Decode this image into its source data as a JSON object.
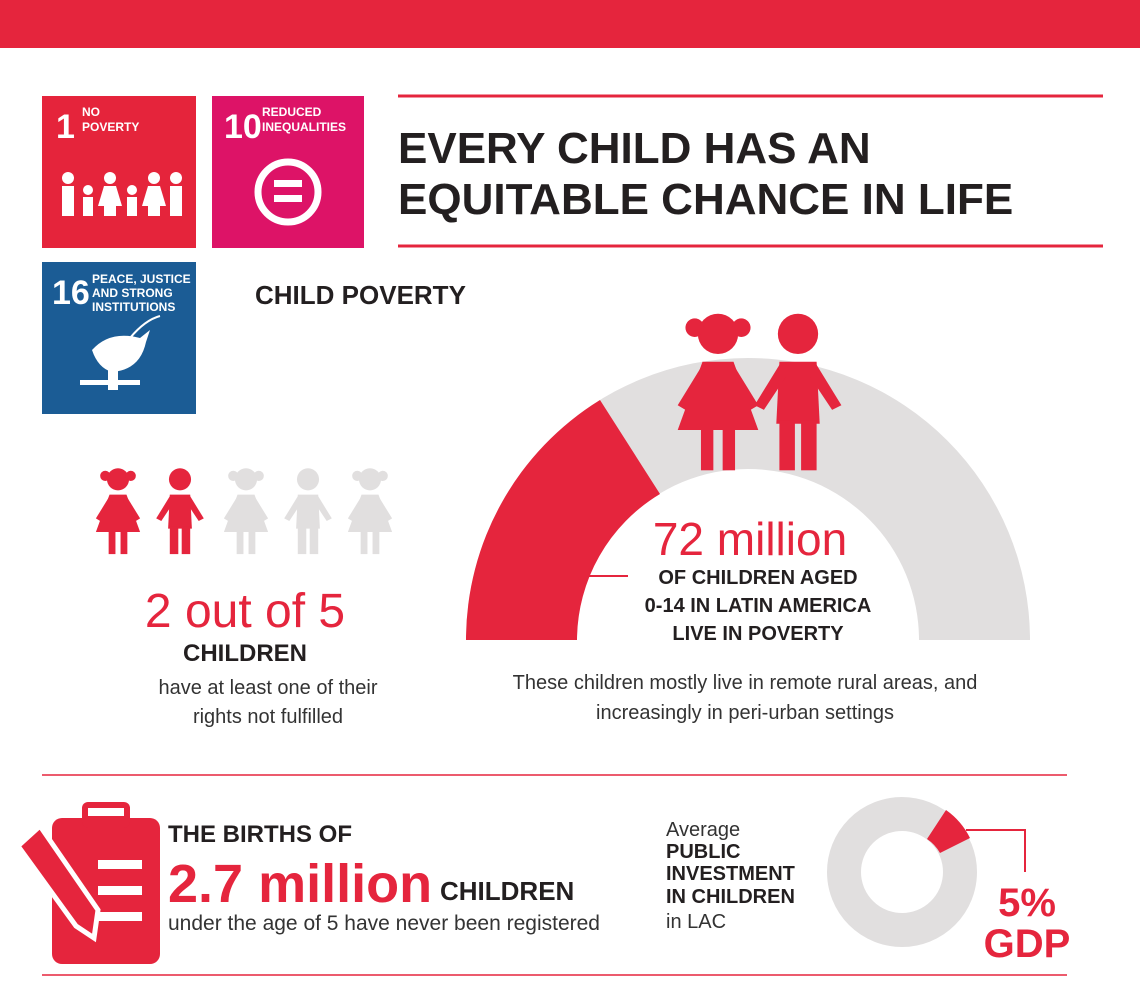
{
  "header": {
    "title_lines": [
      "EVERY CHILD HAS AN",
      "EQUITABLE CHANCE IN LIFE"
    ]
  },
  "goals": [
    {
      "number": "1",
      "label_lines": [
        "NO",
        "POVERTY"
      ]
    },
    {
      "number": "10",
      "label_lines": [
        "REDUCED",
        "INEQUALITIES"
      ]
    },
    {
      "number": "16",
      "label_lines": [
        "PEACE, JUSTICE",
        "AND STRONG",
        "INSTITUTIONS"
      ]
    }
  ],
  "section_title": "CHILD POVERTY",
  "rights": {
    "headline": "2 out of 5",
    "subject": "CHILDREN",
    "note_lines": [
      "have at least one of their",
      "rights not fulfilled"
    ]
  },
  "poverty": {
    "headline": "72 million",
    "detail_lines": [
      "OF CHILDREN AGED",
      "0-14 IN LATIN AMERICA",
      "LIVE IN POVERTY"
    ],
    "caption_lines": [
      "These children mostly live in remote rural areas, and",
      "increasingly in peri-urban settings"
    ]
  },
  "births": {
    "intro": "THE BIRTHS OF",
    "figure": "2.7 million",
    "subject": "CHILDREN",
    "note": "under the age of 5 have never been registered"
  },
  "investment": {
    "lines": [
      "Average",
      "PUBLIC",
      "INVESTMENT",
      "IN CHILDREN",
      "in LAC"
    ],
    "share": "5%",
    "unit": "GDP"
  }
}
